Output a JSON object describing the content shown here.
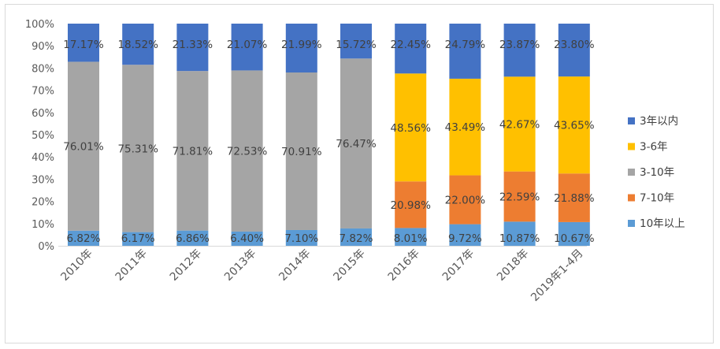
{
  "chart_data": {
    "type": "bar",
    "stacked": true,
    "percent": true,
    "categories": [
      "2010年",
      "2011年",
      "2012年",
      "2013年",
      "2014年",
      "2015年",
      "2016年",
      "2017年",
      "2018年",
      "2019年1-4月"
    ],
    "ylim": [
      0,
      100
    ],
    "yticks": [
      "0%",
      "10%",
      "20%",
      "30%",
      "40%",
      "50%",
      "60%",
      "70%",
      "80%",
      "90%",
      "100%"
    ],
    "grid": false,
    "legend_position": "right",
    "series": [
      {
        "name": "10年以上",
        "color": "#5b9bd5",
        "values": [
          6.82,
          6.17,
          6.86,
          6.4,
          7.1,
          7.82,
          8.01,
          9.72,
          10.87,
          10.67
        ],
        "labels": [
          "6.82%",
          "6.17%",
          "6.86%",
          "6.40%",
          "7.10%",
          "7.82%",
          "8.01%",
          "9.72%",
          "10.87%",
          "10.67%"
        ]
      },
      {
        "name": "7-10年",
        "color": "#ed7d31",
        "values": [
          0,
          0,
          0,
          0,
          0,
          0,
          20.98,
          22.0,
          22.59,
          21.88
        ],
        "labels": [
          "",
          "",
          "",
          "",
          "",
          "",
          "20.98%",
          "22.00%",
          "22.59%",
          "21.88%"
        ]
      },
      {
        "name": "3-10年",
        "color": "#a5a5a5",
        "values": [
          76.01,
          75.31,
          71.81,
          72.53,
          70.91,
          76.47,
          0,
          0,
          0,
          0
        ],
        "labels": [
          "76.01%",
          "75.31%",
          "71.81%",
          "72.53%",
          "70.91%",
          "76.47%",
          "",
          "",
          "",
          ""
        ]
      },
      {
        "name": "3-6年",
        "color": "#ffc000",
        "values": [
          0,
          0,
          0,
          0,
          0,
          0,
          48.56,
          43.49,
          42.67,
          43.65
        ],
        "labels": [
          "",
          "",
          "",
          "",
          "",
          "",
          "48.56%",
          "43.49%",
          "42.67%",
          "43.65%"
        ]
      },
      {
        "name": "3年以内",
        "color": "#4472c4",
        "values": [
          17.17,
          18.52,
          21.33,
          21.07,
          21.99,
          15.72,
          22.45,
          24.79,
          23.87,
          23.8
        ],
        "labels": [
          "17.17%",
          "18.52%",
          "21.33%",
          "21.07%",
          "21.99%",
          "15.72%",
          "22.45%",
          "24.79%",
          "23.87%",
          "23.80%"
        ]
      }
    ],
    "legend_order": [
      "3年以内",
      "3-6年",
      "3-10年",
      "7-10年",
      "10年以上"
    ]
  }
}
